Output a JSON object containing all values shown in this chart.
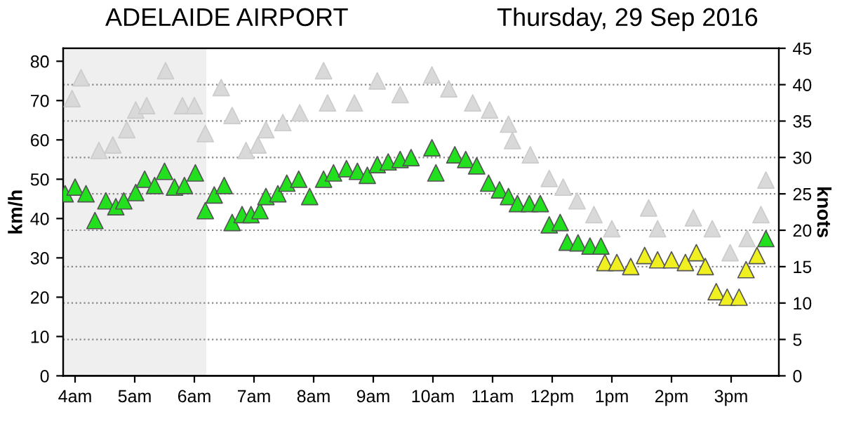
{
  "chart_data": {
    "type": "scatter",
    "title": "ADELAIDE AIRPORT",
    "subtitle": "Thursday, 29 Sep 2016",
    "ylabel": "km/h",
    "y2label": "knots",
    "xlim": [
      "2016-09-29T03:48",
      "2016-09-29T15:48"
    ],
    "xticks": [
      {
        "value": "2016-09-29T04:00",
        "label": "4am"
      },
      {
        "value": "2016-09-29T05:00",
        "label": "5am"
      },
      {
        "value": "2016-09-29T06:00",
        "label": "6am"
      },
      {
        "value": "2016-09-29T07:00",
        "label": "7am"
      },
      {
        "value": "2016-09-29T08:00",
        "label": "8am"
      },
      {
        "value": "2016-09-29T09:00",
        "label": "9am"
      },
      {
        "value": "2016-09-29T10:00",
        "label": "10am"
      },
      {
        "value": "2016-09-29T11:00",
        "label": "11am"
      },
      {
        "value": "2016-09-29T12:00",
        "label": "12pm"
      },
      {
        "value": "2016-09-29T13:00",
        "label": "1pm"
      },
      {
        "value": "2016-09-29T14:00",
        "label": "2pm"
      },
      {
        "value": "2016-09-29T15:00",
        "label": "3pm"
      }
    ],
    "ylim": [
      0,
      83.3
    ],
    "yticks": [
      0,
      10,
      20,
      30,
      40,
      50,
      60,
      70,
      80
    ],
    "y2lim": [
      0,
      45
    ],
    "y2ticks": [
      0,
      5,
      10,
      15,
      20,
      25,
      30,
      35,
      40,
      45
    ],
    "grid": "y2",
    "marker": "triangle",
    "bands": [
      {
        "axis": "x",
        "from": "2016-09-29T03:48",
        "to": "2016-09-29T06:12",
        "color": "#efefef"
      }
    ],
    "series": [
      {
        "color": "#d9d9d9",
        "x": [
          "2016-09-29T03:57",
          "2016-09-29T04:06",
          "2016-09-29T04:24",
          "2016-09-29T04:38",
          "2016-09-29T04:52",
          "2016-09-29T05:01",
          "2016-09-29T05:12",
          "2016-09-29T05:31",
          "2016-09-29T05:48",
          "2016-09-29T06:00",
          "2016-09-29T06:11",
          "2016-09-29T06:27",
          "2016-09-29T06:38",
          "2016-09-29T06:52",
          "2016-09-29T07:04",
          "2016-09-29T07:12",
          "2016-09-29T07:29",
          "2016-09-29T07:46",
          "2016-09-29T08:10",
          "2016-09-29T08:14",
          "2016-09-29T08:41",
          "2016-09-29T09:04",
          "2016-09-29T09:27",
          "2016-09-29T09:59",
          "2016-09-29T10:16",
          "2016-09-29T10:40",
          "2016-09-29T10:57",
          "2016-09-29T11:16",
          "2016-09-29T11:20",
          "2016-09-29T11:38",
          "2016-09-29T11:57",
          "2016-09-29T12:11",
          "2016-09-29T12:25",
          "2016-09-29T12:42",
          "2016-09-29T13:00",
          "2016-09-29T13:37",
          "2016-09-29T13:46",
          "2016-09-29T14:22",
          "2016-09-29T14:41",
          "2016-09-29T14:59",
          "2016-09-29T15:16",
          "2016-09-29T15:30",
          "2016-09-29T15:35"
        ],
        "values": [
          70.5,
          75.8,
          57.3,
          58.7,
          62.6,
          67.6,
          68.7,
          77.6,
          68.7,
          68.7,
          61.6,
          73.3,
          66.2,
          57.3,
          58.7,
          62.6,
          64.4,
          66.9,
          77.6,
          69.4,
          69.4,
          75,
          71.5,
          76.5,
          73,
          69.4,
          67.6,
          64,
          59.8,
          56.2,
          50.2,
          48,
          44.5,
          41,
          37.4,
          42.7,
          37.4,
          40.2,
          37.4,
          31.3,
          34.9,
          41,
          49.8
        ]
      },
      {
        "color": "#22e01e",
        "x": [
          "2016-09-29T03:50",
          "2016-09-29T04:00",
          "2016-09-29T04:11",
          "2016-09-29T04:20",
          "2016-09-29T04:31",
          "2016-09-29T04:41",
          "2016-09-29T04:49",
          "2016-09-29T05:01",
          "2016-09-29T05:10",
          "2016-09-29T05:20",
          "2016-09-29T05:30",
          "2016-09-29T05:40",
          "2016-09-29T05:50",
          "2016-09-29T06:01",
          "2016-09-29T06:11",
          "2016-09-29T06:20",
          "2016-09-29T06:30",
          "2016-09-29T06:38",
          "2016-09-29T06:48",
          "2016-09-29T06:57",
          "2016-09-29T07:06",
          "2016-09-29T07:12",
          "2016-09-29T07:24",
          "2016-09-29T07:33",
          "2016-09-29T07:45",
          "2016-09-29T07:56",
          "2016-09-29T08:10",
          "2016-09-29T08:20",
          "2016-09-29T08:33",
          "2016-09-29T08:44",
          "2016-09-29T08:54",
          "2016-09-29T09:04",
          "2016-09-29T09:15",
          "2016-09-29T09:27",
          "2016-09-29T09:38",
          "2016-09-29T09:59",
          "2016-09-29T10:03",
          "2016-09-29T10:22",
          "2016-09-29T10:33",
          "2016-09-29T10:44",
          "2016-09-29T10:56",
          "2016-09-29T11:07",
          "2016-09-29T11:16",
          "2016-09-29T11:25",
          "2016-09-29T11:37",
          "2016-09-29T11:48",
          "2016-09-29T11:57",
          "2016-09-29T12:08",
          "2016-09-29T12:15",
          "2016-09-29T12:26",
          "2016-09-29T12:38",
          "2016-09-29T12:49",
          "2016-09-29T15:35"
        ],
        "values": [
          46.3,
          48,
          46.3,
          39.5,
          44.5,
          43,
          44.5,
          46.6,
          50,
          48.4,
          52,
          48,
          48.4,
          51.6,
          42,
          46,
          48.4,
          39,
          41,
          41,
          42,
          45.6,
          46.3,
          49,
          50,
          45.6,
          50,
          51.6,
          52.7,
          52,
          51,
          53.7,
          54.4,
          55,
          55.5,
          58,
          51.6,
          56.2,
          55,
          53.4,
          49,
          47.3,
          45.6,
          43.8,
          43.8,
          43.8,
          38.4,
          39,
          34,
          33.8,
          33,
          33,
          34.9
        ]
      },
      {
        "color": "#f0f020",
        "x": [
          "2016-09-29T12:53",
          "2016-09-29T13:05",
          "2016-09-29T13:19",
          "2016-09-29T13:33",
          "2016-09-29T13:46",
          "2016-09-29T14:00",
          "2016-09-29T14:14",
          "2016-09-29T14:25",
          "2016-09-29T14:34",
          "2016-09-29T14:45",
          "2016-09-29T14:56",
          "2016-09-29T15:08",
          "2016-09-29T15:15",
          "2016-09-29T15:26"
        ],
        "values": [
          28.8,
          28.8,
          27.8,
          30.6,
          29.5,
          29.5,
          28.8,
          31.3,
          27.8,
          21.4,
          20,
          20,
          27,
          30.6
        ]
      }
    ]
  }
}
